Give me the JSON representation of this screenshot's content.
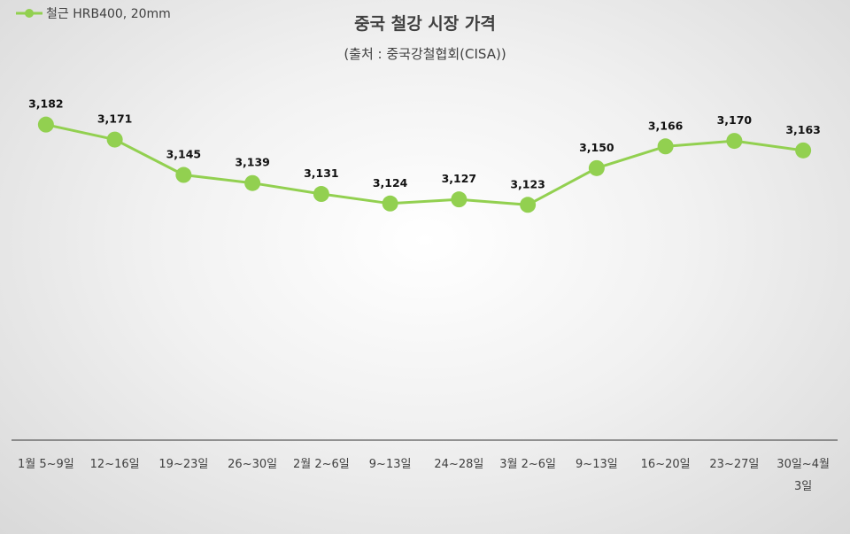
{
  "chart_data": {
    "type": "line",
    "title": "중국 철강 시장 가격",
    "subtitle": "(출처 : 중국강철협회(CISA))",
    "xlabel": "",
    "ylabel": "",
    "categories": [
      [
        "1월 5~9일"
      ],
      [
        "12~16일"
      ],
      [
        "19~23일"
      ],
      [
        "26~30일"
      ],
      [
        "2월 2~6일"
      ],
      [
        "9~13일"
      ],
      [
        "24~28일"
      ],
      [
        "3월 2~6일"
      ],
      [
        "9~13일"
      ],
      [
        "16~20일"
      ],
      [
        "23~27일"
      ],
      [
        "30일~4월",
        "3일"
      ]
    ],
    "series": [
      {
        "name": "철근 HRB400, 20mm",
        "values": [
          3182,
          3171,
          3145,
          3139,
          3131,
          3124,
          3127,
          3123,
          3150,
          3166,
          3170,
          3163
        ],
        "labels": [
          "3,182",
          "3,171",
          "3,145",
          "3,139",
          "3,131",
          "3,124",
          "3,127",
          "3,123",
          "3,150",
          "3,166",
          "3,170",
          "3,163"
        ]
      }
    ],
    "ylim": [
      2950,
      3215
    ],
    "grid": false,
    "legend_position": "top-left",
    "colors": {
      "series": "#92d050",
      "axis": "#595959",
      "text": "#404040"
    }
  }
}
